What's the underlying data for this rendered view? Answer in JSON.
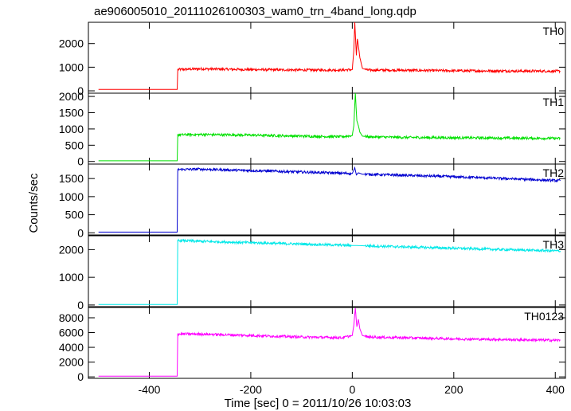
{
  "title": "ae906005010_20111026100303_wam0_trn_4band_long.qdp",
  "xlabel": "Time [sec] 0 = 2011/10/26 10:03:03",
  "ylabel": "Counts/sec",
  "chart_data": {
    "type": "line",
    "title": "ae906005010_20111026100303_wam0_trn_4band_long.qdp",
    "xlabel": "Time [sec] 0 = 2011/10/26 10:03:03",
    "ylabel": "Counts/sec",
    "xlim": [
      -520,
      420
    ],
    "xticks": [
      -400,
      -200,
      0,
      200,
      400
    ],
    "grid": false,
    "panels": [
      {
        "name": "TH0",
        "color": "#ff0000",
        "ylim": [
          -100,
          2900
        ],
        "yticks": [
          0,
          1000,
          2000
        ],
        "x": [
          -500,
          -345,
          -344,
          -300,
          -200,
          -100,
          -20,
          0,
          3,
          5,
          8,
          10,
          12,
          15,
          20,
          30,
          100,
          200,
          300,
          410
        ],
        "y": [
          60,
          60,
          900,
          930,
          900,
          880,
          880,
          900,
          1700,
          2900,
          1500,
          2200,
          1900,
          1400,
          950,
          880,
          870,
          850,
          840,
          830
        ]
      },
      {
        "name": "TH1",
        "color": "#00e000",
        "ylim": [
          -80,
          2100
        ],
        "yticks": [
          0,
          500,
          1000,
          1500,
          2000
        ],
        "x": [
          -500,
          -345,
          -344,
          -300,
          -200,
          -100,
          -20,
          0,
          3,
          6,
          9,
          12,
          15,
          20,
          30,
          100,
          200,
          300,
          410
        ],
        "y": [
          20,
          20,
          820,
          830,
          810,
          780,
          760,
          800,
          1100,
          2100,
          1250,
          1100,
          900,
          780,
          760,
          740,
          730,
          720,
          710
        ]
      },
      {
        "name": "TH2",
        "color": "#0000d0",
        "ylim": [
          -60,
          1900
        ],
        "yticks": [
          0,
          500,
          1000,
          1500
        ],
        "x": [
          -500,
          -345,
          -344,
          -300,
          -200,
          -100,
          0,
          5,
          8,
          12,
          20,
          50,
          100,
          200,
          300,
          410
        ],
        "y": [
          20,
          20,
          1750,
          1760,
          1720,
          1680,
          1640,
          1800,
          1600,
          1660,
          1620,
          1610,
          1590,
          1550,
          1500,
          1440
        ]
      },
      {
        "name": "TH3",
        "color": "#00e8e8",
        "ylim": [
          -60,
          2500
        ],
        "yticks": [
          0,
          1000,
          2000
        ],
        "x": [
          -500,
          -345,
          -344,
          -300,
          -200,
          -100,
          0,
          100,
          200,
          300,
          410
        ],
        "y": [
          20,
          20,
          2330,
          2300,
          2250,
          2200,
          2150,
          2100,
          2050,
          2000,
          1950
        ]
      },
      {
        "name": "TH0123",
        "color": "#ff00ff",
        "ylim": [
          -200,
          9400
        ],
        "yticks": [
          0,
          2000,
          4000,
          6000,
          8000
        ],
        "x": [
          -500,
          -345,
          -344,
          -300,
          -200,
          -100,
          -20,
          0,
          3,
          6,
          9,
          12,
          15,
          20,
          30,
          100,
          200,
          300,
          410
        ],
        "y": [
          100,
          100,
          5800,
          5800,
          5600,
          5400,
          5300,
          5600,
          7000,
          9300,
          6800,
          7800,
          6500,
          5600,
          5400,
          5300,
          5150,
          5050,
          4950
        ]
      }
    ]
  }
}
